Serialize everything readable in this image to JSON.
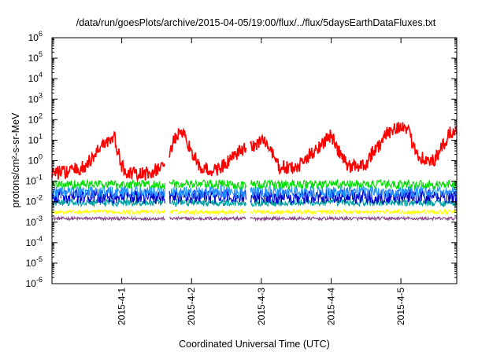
{
  "chart_data": {
    "type": "line",
    "title": "/data/run/goesPlots/archive/2015-04-05/19:00/flux/../flux/5daysEarthDataFluxes.txt",
    "xlabel": "Coordinated Universal Time (UTC)",
    "ylabel": "protons/cm²-s-sr-MeV",
    "yscale": "log",
    "xlim": [
      0,
      5.8
    ],
    "ylim": [
      1e-06,
      1000000
    ],
    "grid": false,
    "legend": "none",
    "x_ticks": [
      {
        "x": 1,
        "label": "2015-4-1"
      },
      {
        "x": 2,
        "label": "2015-4-2"
      },
      {
        "x": 3,
        "label": "2015-4-3"
      },
      {
        "x": 4,
        "label": "2015-4-4"
      },
      {
        "x": 5,
        "label": "2015-4-5"
      }
    ],
    "y_ticks": [
      {
        "v": 1e-06,
        "base": "10",
        "exp": "-6"
      },
      {
        "v": 1e-05,
        "base": "10",
        "exp": "-5"
      },
      {
        "v": 0.0001,
        "base": "10",
        "exp": "-4"
      },
      {
        "v": 0.001,
        "base": "10",
        "exp": "-3"
      },
      {
        "v": 0.01,
        "base": "10",
        "exp": "-2"
      },
      {
        "v": 0.1,
        "base": "10",
        "exp": "-1"
      },
      {
        "v": 1,
        "base": "10",
        "exp": "0"
      },
      {
        "v": 10,
        "base": "10",
        "exp": "1"
      },
      {
        "v": 100,
        "base": "10",
        "exp": "2"
      },
      {
        "v": 1000,
        "base": "10",
        "exp": "3"
      },
      {
        "v": 10000,
        "base": "10",
        "exp": "4"
      },
      {
        "v": 100000,
        "base": "10",
        "exp": "5"
      },
      {
        "v": 1000000,
        "base": "10",
        "exp": "6"
      }
    ],
    "series": [
      {
        "color": "#ff0000",
        "noise_decades": 0.35,
        "x": [
          0,
          0.25,
          0.45,
          0.6,
          0.7,
          0.8,
          0.9,
          1.0,
          1.1,
          1.2,
          1.4,
          1.6,
          1.7,
          1.8,
          1.9,
          2.0,
          2.1,
          2.3,
          2.5,
          2.7,
          2.9,
          3.0,
          3.1,
          3.25,
          3.5,
          3.7,
          3.85,
          4.0,
          4.1,
          4.25,
          4.5,
          4.6,
          4.7,
          4.8,
          4.9,
          5.0,
          5.1,
          5.25,
          5.4,
          5.5,
          5.6,
          5.7,
          5.8
        ],
        "y": [
          0.25,
          0.3,
          0.45,
          1.5,
          6,
          9,
          12,
          0.5,
          0.25,
          0.2,
          0.25,
          0.5,
          4,
          20,
          14,
          3,
          0.5,
          0.3,
          0.7,
          3,
          5,
          12,
          5,
          0.5,
          0.4,
          2,
          6,
          18,
          3,
          0.5,
          0.7,
          3,
          6,
          20,
          40,
          50,
          25,
          2,
          0.8,
          1.2,
          5,
          20,
          35
        ]
      },
      {
        "color": "#00dd00",
        "noise_decades": 0.22,
        "x": [
          0,
          5.8
        ],
        "y": [
          0.07,
          0.07
        ]
      },
      {
        "color": "#1e90ff",
        "noise_decades": 0.3,
        "x": [
          0,
          5.8
        ],
        "y": [
          0.03,
          0.03
        ]
      },
      {
        "color": "#0000cd",
        "noise_decades": 0.35,
        "x": [
          0,
          5.8
        ],
        "y": [
          0.018,
          0.018
        ]
      },
      {
        "color": "#00a0a0",
        "noise_decades": 0.18,
        "x": [
          0,
          5.8
        ],
        "y": [
          0.009,
          0.009
        ]
      },
      {
        "color": "#ffff00",
        "noise_decades": 0.1,
        "x": [
          0,
          5.8
        ],
        "y": [
          0.0032,
          0.0032
        ]
      },
      {
        "color": "#884488",
        "noise_decades": 0.08,
        "x": [
          0,
          5.8
        ],
        "y": [
          0.0015,
          0.0015
        ]
      }
    ],
    "gaps": [
      [
        1.62,
        1.68
      ],
      [
        2.78,
        2.84
      ]
    ]
  }
}
